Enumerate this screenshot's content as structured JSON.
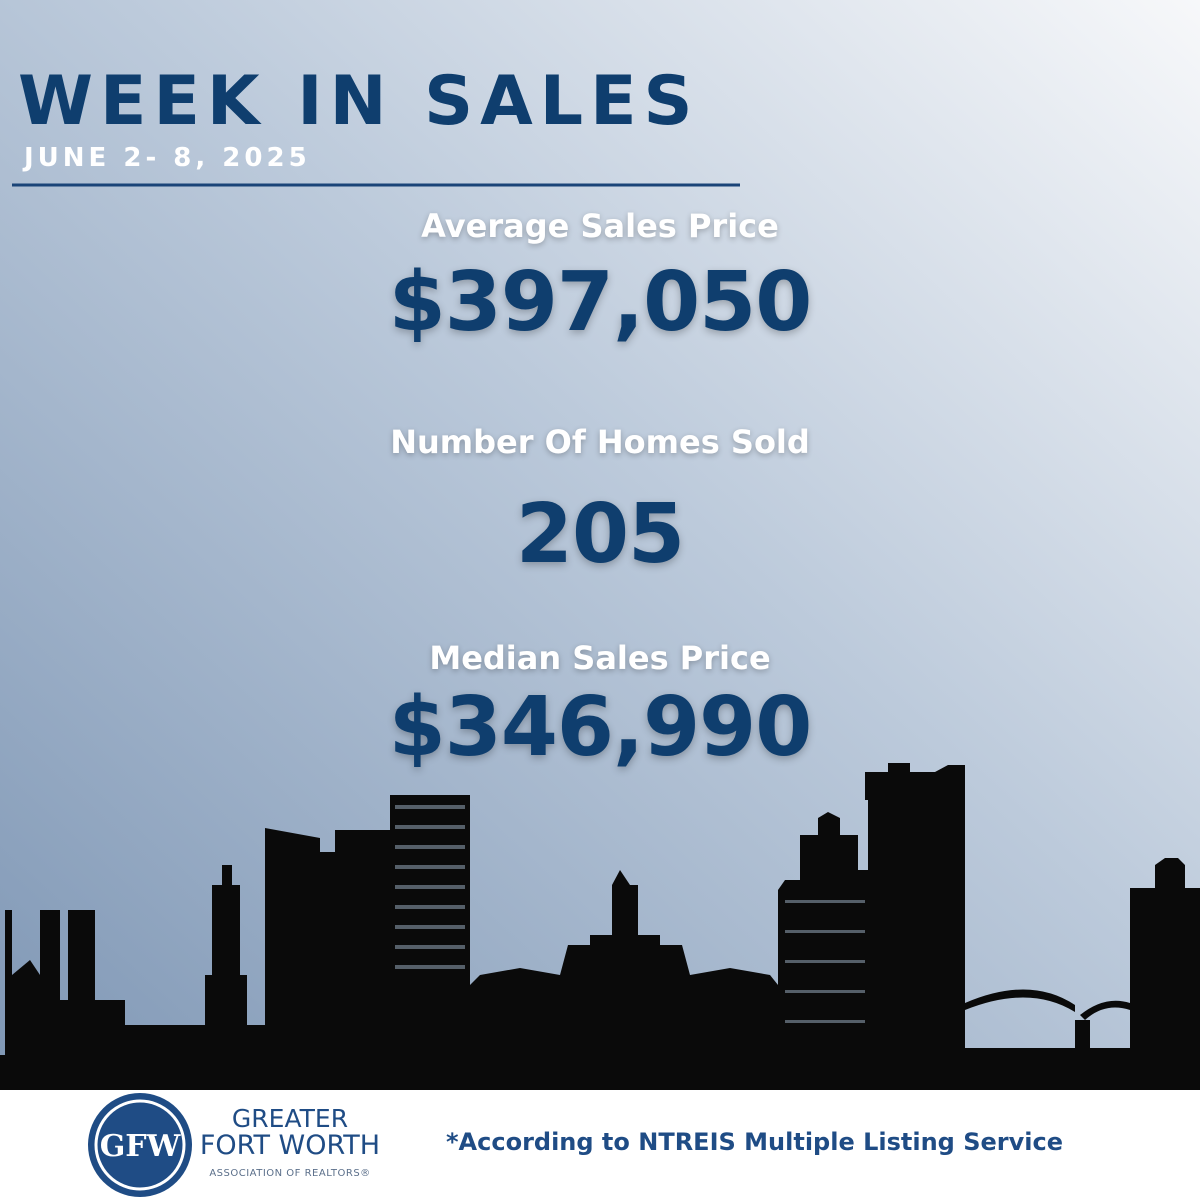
{
  "header": {
    "title": "WEEK IN SALES",
    "date": "JUNE 2- 8, 2025"
  },
  "stats": [
    {
      "label": "Average Sales Price",
      "value": "$397,050"
    },
    {
      "label": "Number Of Homes Sold",
      "value": "205"
    },
    {
      "label": "Median Sales Price",
      "value": "$346,990"
    }
  ],
  "footer": {
    "logo_monogram": "GFW",
    "logo_line1": "GREATER",
    "logo_line2": "FORT WORTH",
    "logo_line3": "ASSOCIATION OF REALTORS®",
    "note": "*According to NTREIS Multiple Listing Service"
  }
}
